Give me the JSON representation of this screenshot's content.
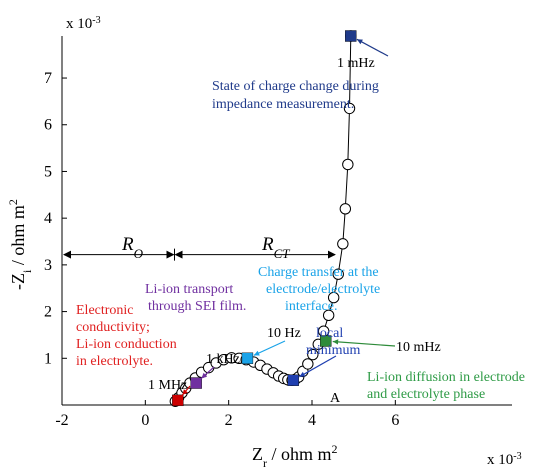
{
  "chart_data": {
    "type": "scatter",
    "xlabel_main": "Z",
    "xlabel_sub": "r",
    "xlabel_unit": " / ohm m",
    "xlabel_exp": "2",
    "ylabel_main": "-Z",
    "ylabel_sub": "i",
    "ylabel_unit": " / ohm m",
    "ylabel_exp": "2",
    "x_multiplier": "x 10",
    "x_multiplier_exp": "-3",
    "y_multiplier": "x 10",
    "y_multiplier_exp": "-3",
    "xlim": [
      -2,
      8.8
    ],
    "ylim": [
      0,
      7.9
    ],
    "xticks": [
      -2,
      0,
      2,
      4,
      6
    ],
    "yticks": [
      1,
      2,
      3,
      4,
      5,
      6,
      7
    ],
    "grid": false,
    "colors": {
      "points": "#000000",
      "one_mhz": "#cc0000",
      "one_khz": "#7030a0",
      "ten_hz": "#1aa3e8",
      "local_min": "#1f3fb0",
      "ten_mhz": "#2e8b3a",
      "one_mhz_low": "#1f3a8a",
      "electronic_text": "#e02020",
      "sei_text": "#7030a0",
      "ct_text": "#1aa3e8",
      "diffusion_text": "#2e9b46",
      "soc_text": "#1f3a8a"
    },
    "series": [
      {
        "x": [
          0.72,
          0.8,
          0.88,
          0.97,
          1.07,
          1.2,
          1.35,
          1.52,
          1.7,
          1.88,
          2.07,
          2.25,
          2.42,
          2.6,
          2.76,
          2.92,
          3.07,
          3.2,
          3.32,
          3.42,
          3.52,
          3.6,
          3.68,
          3.78,
          3.9,
          4.02,
          4.15,
          4.28,
          4.4,
          4.52,
          4.63,
          4.74,
          4.8,
          4.86,
          4.9,
          4.93
        ],
        "y": [
          0.08,
          0.16,
          0.26,
          0.36,
          0.47,
          0.58,
          0.7,
          0.8,
          0.9,
          0.97,
          1.01,
          1.0,
          0.97,
          0.92,
          0.85,
          0.77,
          0.69,
          0.62,
          0.57,
          0.54,
          0.53,
          0.55,
          0.6,
          0.72,
          0.88,
          1.08,
          1.3,
          1.58,
          1.92,
          2.3,
          2.8,
          3.45,
          4.2,
          5.15,
          6.35,
          7.9
        ]
      }
    ],
    "markers": [
      {
        "label": "1 MHz",
        "x": 0.78,
        "y": 0.1,
        "color": "#cc0000"
      },
      {
        "label": "1 kHz",
        "x": 1.22,
        "y": 0.47,
        "color": "#7030a0"
      },
      {
        "label": "10 Hz",
        "x": 2.45,
        "y": 1.0,
        "color": "#1aa3e8"
      },
      {
        "label": "A",
        "x": 3.55,
        "y": 0.53,
        "color": "#1f3fb0"
      },
      {
        "label": "10 mHz",
        "x": 4.33,
        "y": 1.37,
        "color": "#2e8b3a"
      },
      {
        "label": "1 mHz",
        "x": 4.93,
        "y": 7.9,
        "color": "#1f3a8a"
      }
    ],
    "regions": {
      "ro_label": "R",
      "ro_sub": "O",
      "rct_label": "R",
      "rct_sub": "CT",
      "arrow_y": 3.22,
      "ro_from": -2,
      "ro_to": 0.7,
      "rct_from": 0.7,
      "rct_to": 4.55
    },
    "annotations": {
      "electronic": [
        "Electronic",
        "conductivity;",
        "Li-ion conduction",
        "in electrolyte."
      ],
      "sei": [
        "Li-ion transport",
        "through SEI film."
      ],
      "ct": [
        "Charge transfer at the",
        "electrode/electrolyte",
        "interface."
      ],
      "local_min": [
        "local",
        "minimum"
      ],
      "diffusion": [
        "Li-ion diffusion in electrode",
        "and electrolyte phase"
      ],
      "soc": [
        "State of charge change during",
        "impedance measurement."
      ],
      "freq_1MHz": "1 MHz",
      "freq_1kHz": "1 kHz",
      "freq_10Hz": "10 Hz",
      "freq_A": "A",
      "freq_10mHz": "10 mHz",
      "freq_1mHz": "1 mHz"
    }
  }
}
